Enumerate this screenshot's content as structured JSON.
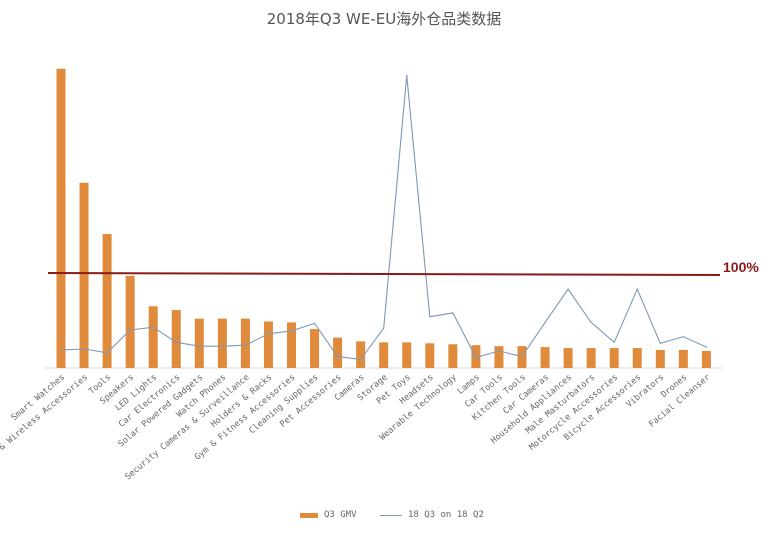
{
  "chart_data": {
    "type": "bar+line",
    "title": "2018年Q3 WE-EU海外仓品类数据",
    "categories": [
      "Smart Watches",
      "& Wireless Accessories",
      "Tools",
      "Speakers",
      "LED Lights",
      "Car Electronics",
      "Solar Powered Gadgets",
      "Watch Phones",
      "Security Cameras & Surveillance",
      "Holders & Racks",
      "Gym & Fitness Accessories",
      "Cleaning Supplies",
      "Pet Accessories",
      "Cameras",
      "Storage",
      "Pet Toys",
      "Headsets",
      "Wearable Technology",
      "Lamps",
      "Car Tools",
      "Kitchen Tools",
      "Car Cameras",
      "Household Appliances",
      "Male Masturbators",
      "Motorcycle Accessories",
      "Bicycle Accessories",
      "Vibrators",
      "Drones",
      "Facial Cleanser"
    ],
    "series": [
      {
        "name": "Q3 GMV",
        "type": "bar",
        "color": "#e08a3c",
        "values": [
          315,
          195,
          141,
          97,
          65,
          61,
          52,
          52,
          52,
          49,
          48,
          41,
          32,
          28,
          27,
          27,
          26,
          25,
          24,
          23,
          23,
          22,
          21,
          21,
          21,
          21,
          19,
          19,
          18
        ]
      },
      {
        "name": "18 Q3 on 18 Q2",
        "type": "line",
        "color": "#7f98b8",
        "values": [
          19,
          20,
          16,
          40,
          43,
          27,
          23,
          23,
          24,
          36,
          39,
          47,
          12,
          9,
          42,
          308,
          54,
          58,
          11,
          18,
          12,
          48,
          83,
          48,
          27,
          83,
          26,
          33,
          22
        ]
      }
    ],
    "reference_line": {
      "value": 100,
      "label": "100%",
      "color": "#8b1a1a"
    },
    "y_axis_shown": false,
    "grid": false,
    "legend_position": "bottom"
  }
}
